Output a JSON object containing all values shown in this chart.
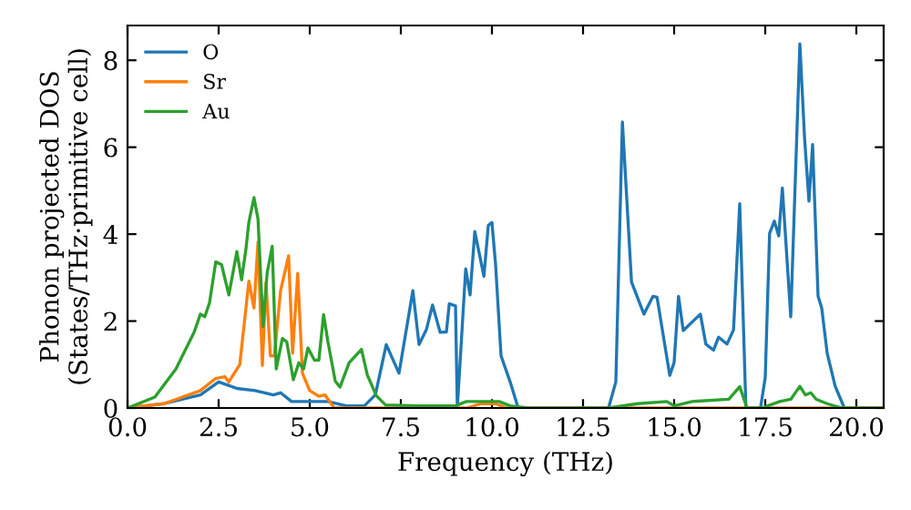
{
  "chart_data": {
    "type": "line",
    "xlabel": "Frequency (THz)",
    "ylabel": "Phonon projected DOS\n(States/THz·primitive cell)",
    "xlim": [
      0,
      20.75
    ],
    "ylim": [
      0,
      8.8
    ],
    "xticks": [
      {
        "value": 0,
        "label": "0.0"
      },
      {
        "value": 2.5,
        "label": "2.5"
      },
      {
        "value": 5,
        "label": "5.0"
      },
      {
        "value": 7.5,
        "label": "7.5"
      },
      {
        "value": 10,
        "label": "10.0"
      },
      {
        "value": 12.5,
        "label": "12.5"
      },
      {
        "value": 15,
        "label": "15.0"
      },
      {
        "value": 17.5,
        "label": "17.5"
      },
      {
        "value": 20,
        "label": "20.0"
      }
    ],
    "yticks": [
      0,
      2,
      4,
      6,
      8
    ],
    "legend": "top left",
    "grid": false,
    "series": [
      {
        "name": "O",
        "color": "#1f77b4",
        "x": [
          0,
          1,
          2,
          2.5,
          3,
          3.5,
          4,
          4.2,
          4.5,
          5,
          5.5,
          6,
          6.5,
          6.8,
          7.1,
          7.45,
          7.83,
          8.0,
          8.2,
          8.37,
          8.58,
          8.75,
          8.83,
          9.0,
          9.05,
          9.28,
          9.4,
          9.53,
          9.78,
          9.9,
          10.0,
          10.1,
          10.25,
          10.5,
          10.72,
          11,
          13.2,
          13.4,
          13.58,
          13.83,
          14.17,
          14.42,
          14.53,
          14.88,
          15.0,
          15.12,
          15.25,
          15.72,
          15.87,
          16.08,
          16.22,
          16.45,
          16.63,
          16.8,
          16.97,
          17.37,
          17.5,
          17.62,
          17.75,
          17.87,
          17.97,
          18.2,
          18.45,
          18.58,
          18.7,
          18.8,
          18.95,
          19.05,
          19.2,
          19.42,
          19.67,
          20.75
        ],
        "values": [
          0,
          0.1,
          0.3,
          0.6,
          0.45,
          0.4,
          0.3,
          0.35,
          0.15,
          0.15,
          0.15,
          0.05,
          0.05,
          0.3,
          1.46,
          0.8,
          2.7,
          1.46,
          1.8,
          2.37,
          1.74,
          1.75,
          2.4,
          2.35,
          0,
          3.2,
          2.6,
          4.06,
          3.03,
          4.2,
          4.27,
          3.3,
          1.2,
          0.6,
          0,
          0,
          0,
          0.6,
          6.58,
          2.9,
          2.16,
          2.57,
          2.55,
          0.75,
          1.05,
          2.57,
          1.78,
          2.16,
          1.47,
          1.33,
          1.63,
          1.47,
          1.8,
          4.7,
          0,
          0,
          0.7,
          4.02,
          4.3,
          3.96,
          5.06,
          2.1,
          8.38,
          6.2,
          4.76,
          6.06,
          2.57,
          2.3,
          1.26,
          0.5,
          0,
          0
        ]
      },
      {
        "name": "Sr",
        "color": "#ff7f0e",
        "x": [
          0,
          1,
          2,
          2.42,
          2.67,
          2.78,
          3.08,
          3.33,
          3.47,
          3.58,
          3.7,
          3.8,
          3.92,
          4.03,
          4.2,
          4.42,
          4.53,
          4.67,
          4.8,
          5,
          5.25,
          5.42,
          5.67,
          6,
          9.3,
          9.7,
          10.1,
          10.4,
          20.75
        ],
        "values": [
          0,
          0.1,
          0.4,
          0.68,
          0.72,
          0.6,
          1.0,
          2.92,
          2.3,
          3.82,
          0.98,
          2.9,
          1.2,
          1.2,
          2.7,
          3.5,
          1.26,
          3.1,
          0.8,
          0.4,
          0.27,
          0.3,
          0,
          0,
          0,
          0.1,
          0.1,
          0,
          0
        ]
      },
      {
        "name": "Au",
        "color": "#2ca02c",
        "x": [
          0,
          0.75,
          1.33,
          1.83,
          2.0,
          2.12,
          2.25,
          2.42,
          2.58,
          2.78,
          3.0,
          3.13,
          3.25,
          3.33,
          3.47,
          3.58,
          3.72,
          3.83,
          3.97,
          4.08,
          4.25,
          4.37,
          4.55,
          4.7,
          4.83,
          4.95,
          5.13,
          5.25,
          5.38,
          5.5,
          5.7,
          5.83,
          6.08,
          6.42,
          6.58,
          6.83,
          7.08,
          8.0,
          9.0,
          9.3,
          10.0,
          10.2,
          10.5,
          11,
          13.2,
          14,
          14.8,
          15.0,
          15.5,
          16.5,
          16.8,
          17.0,
          17.4,
          17.9,
          18.2,
          18.45,
          18.6,
          18.75,
          18.9,
          19.2,
          19.6,
          20.75
        ],
        "values": [
          0,
          0.25,
          0.9,
          1.75,
          2.16,
          2.1,
          2.42,
          3.36,
          3.3,
          2.6,
          3.6,
          2.95,
          3.66,
          4.28,
          4.84,
          4.35,
          1.87,
          3.1,
          3.72,
          0.9,
          1.6,
          1.52,
          0.65,
          1.04,
          0.9,
          1.38,
          1.1,
          1.1,
          2.15,
          1.52,
          0.62,
          0.48,
          1.04,
          1.35,
          0.76,
          0.28,
          0.07,
          0.05,
          0.05,
          0.15,
          0.15,
          0.15,
          0.05,
          0,
          0,
          0.1,
          0.15,
          0.05,
          0.15,
          0.2,
          0.49,
          0,
          0,
          0.15,
          0.2,
          0.5,
          0.3,
          0.35,
          0.2,
          0.1,
          0,
          0
        ]
      }
    ]
  }
}
